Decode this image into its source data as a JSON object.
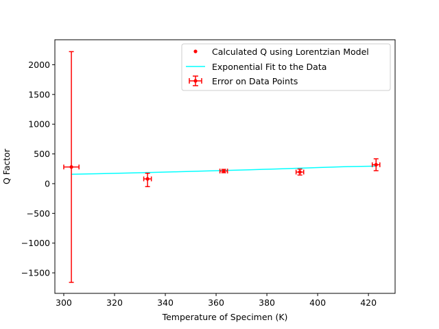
{
  "chart_data": {
    "type": "scatter",
    "xlabel": "Temperature of Specimen (K)",
    "ylabel": "Q Factor",
    "xlim": [
      296.5,
      430.5
    ],
    "ylim": [
      -1845,
      2420
    ],
    "x_ticks": [
      300,
      320,
      340,
      360,
      380,
      400,
      420
    ],
    "y_ticks": [
      -1500,
      -1000,
      -500,
      0,
      500,
      1000,
      1500,
      2000
    ],
    "grid": false,
    "legend_position": "top-right",
    "legend": [
      {
        "label": "Calculated Q using Lorentzian Model",
        "marker": "dot",
        "color": "#ff0000"
      },
      {
        "label": "Exponential Fit to the Data",
        "marker": "line",
        "color": "#00ffff"
      },
      {
        "label": "Error on Data Points",
        "marker": "errorbar",
        "color": "#ff0000"
      }
    ],
    "points": [
      {
        "x": 303,
        "y": 280,
        "yerr_low": 1940,
        "yerr_high": 1940,
        "xerr": 3
      },
      {
        "x": 333,
        "y": 80,
        "yerr_low": 130,
        "yerr_high": 95,
        "xerr": 1.5
      },
      {
        "x": 363,
        "y": 212,
        "yerr_low": 28,
        "yerr_high": 28,
        "xerr": 1.5
      },
      {
        "x": 393,
        "y": 195,
        "yerr_low": 50,
        "yerr_high": 50,
        "xerr": 1.5
      },
      {
        "x": 423,
        "y": 318,
        "yerr_low": 100,
        "yerr_high": 100,
        "xerr": 1.5
      }
    ],
    "fit": {
      "x": [
        303,
        313,
        323,
        333,
        343,
        353,
        363,
        373,
        383,
        393,
        403,
        413,
        423
      ],
      "y": [
        158,
        167,
        177,
        187,
        198,
        209,
        221,
        233,
        246,
        260,
        274,
        288,
        295
      ]
    },
    "colors": {
      "points": "#ff0000",
      "fit": "#00ffff",
      "axes": "#000000"
    }
  }
}
